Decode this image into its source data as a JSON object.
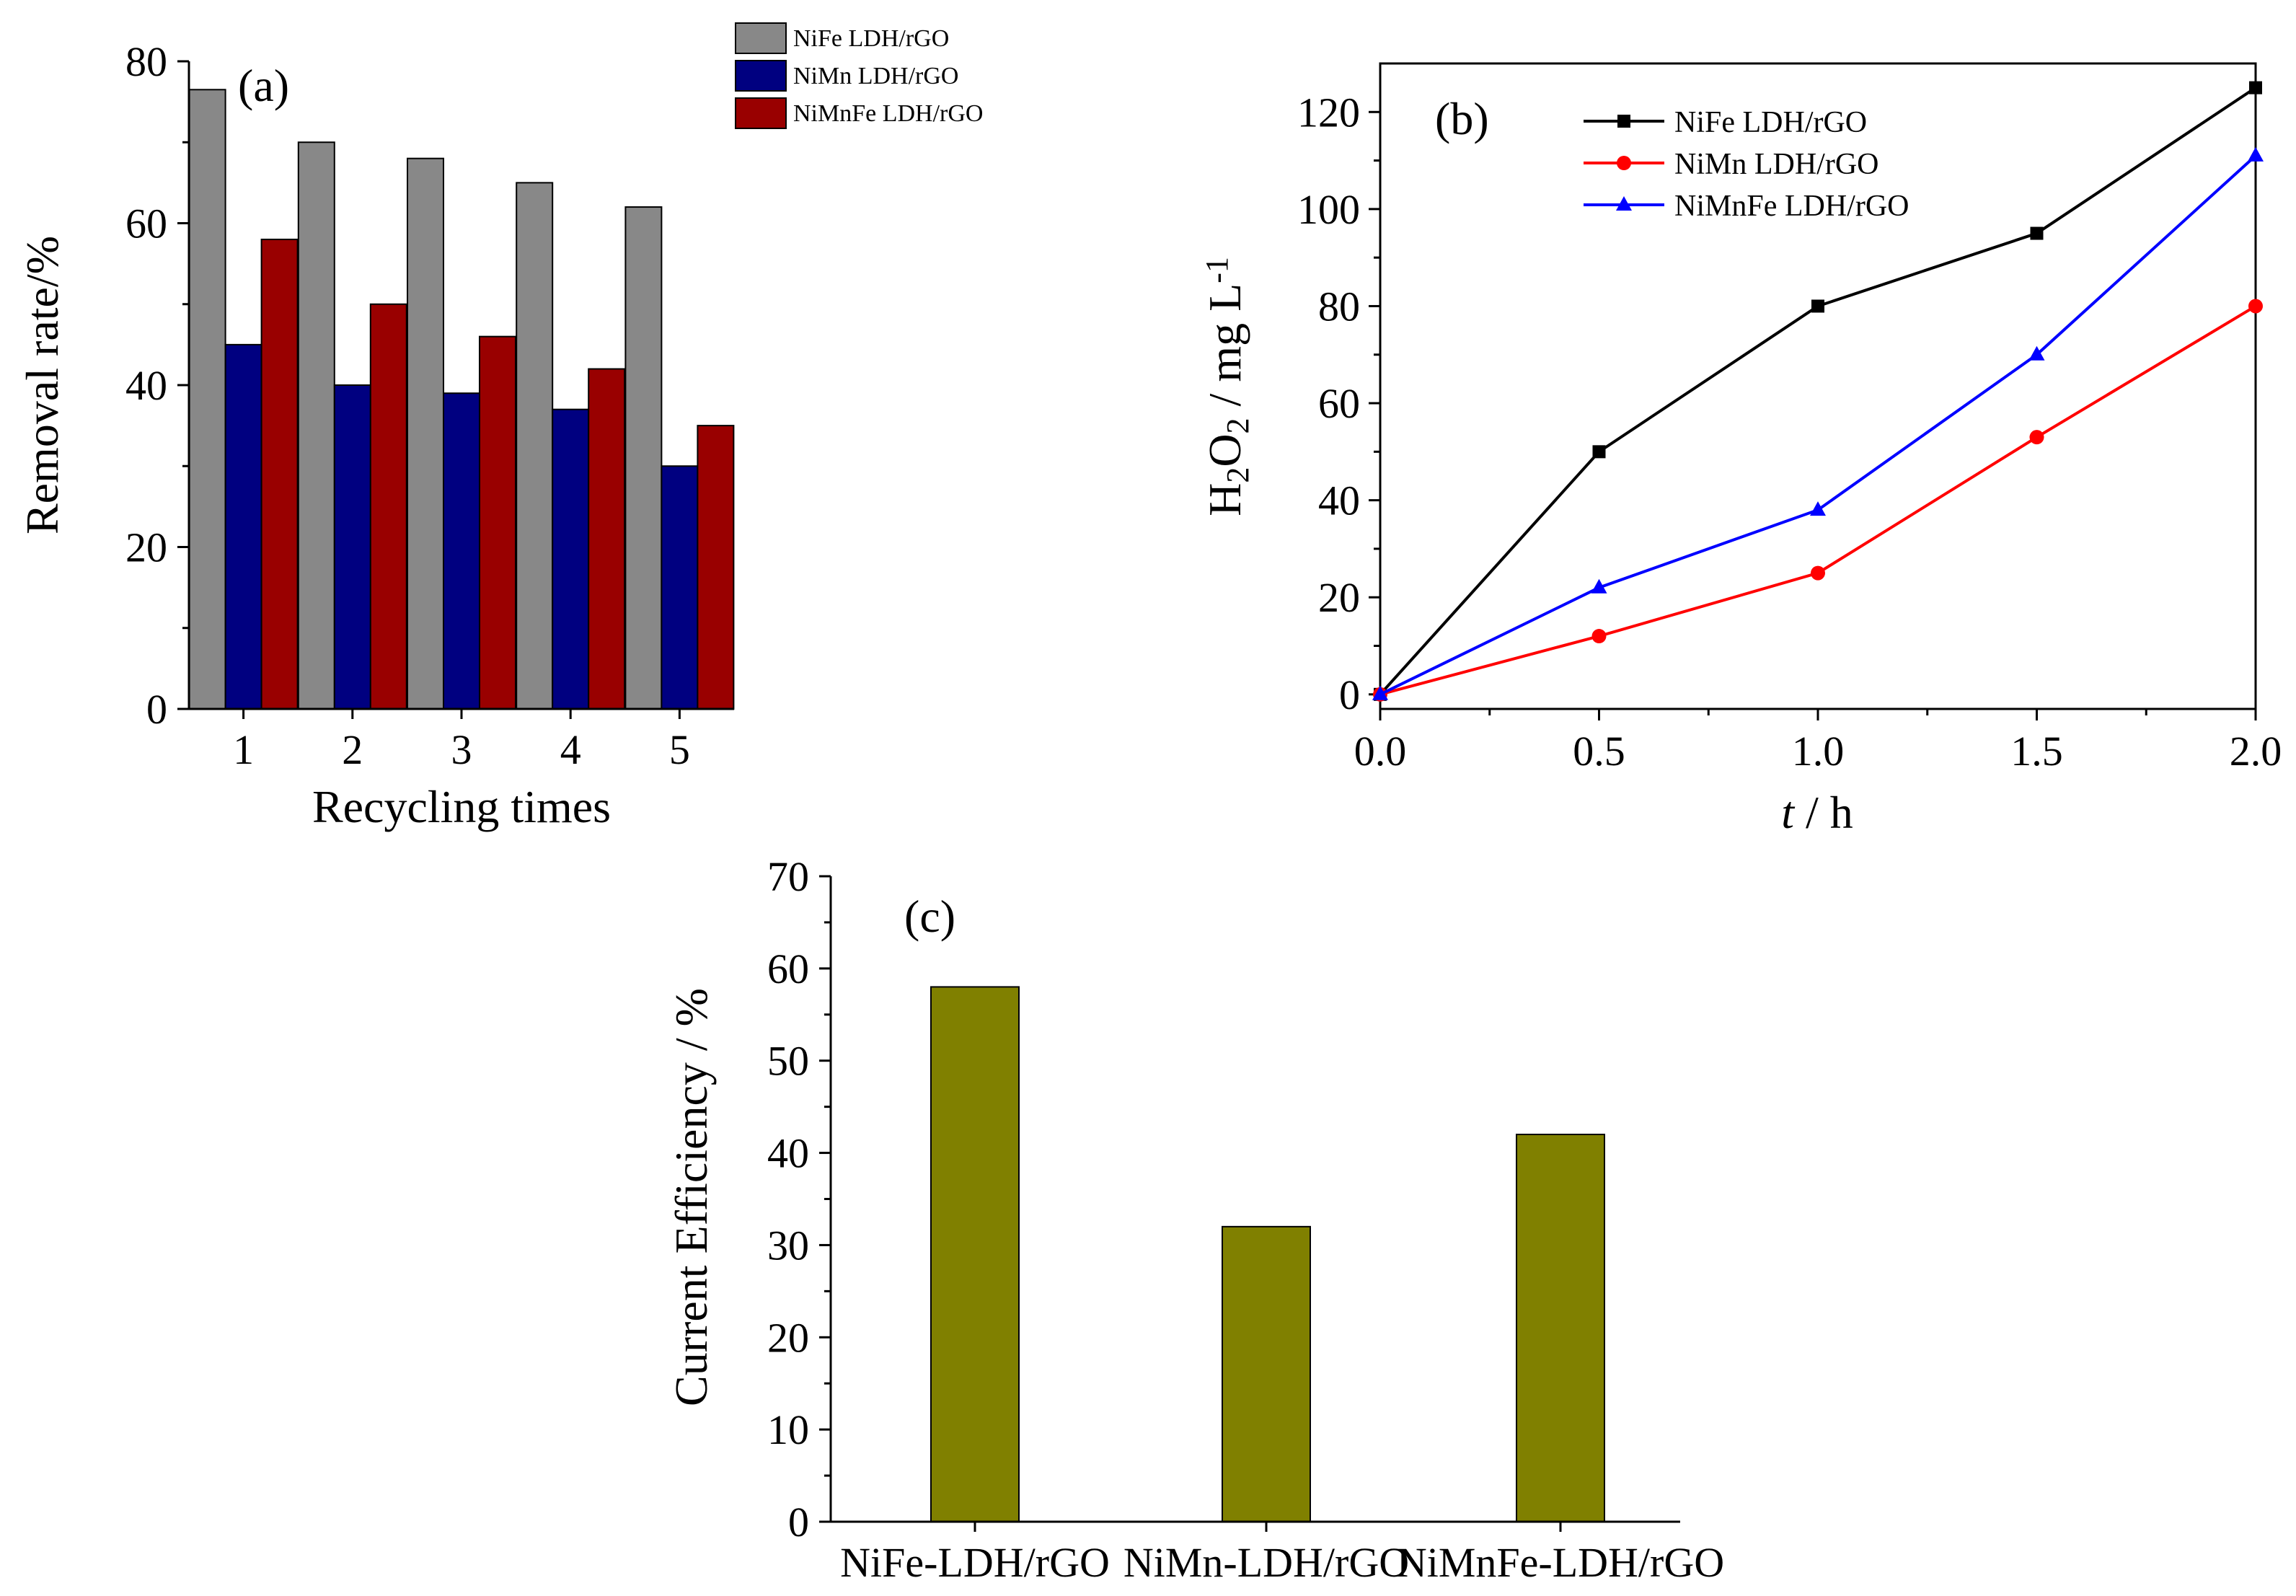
{
  "chart_data": [
    {
      "type": "bar",
      "panel_label": "(a)",
      "xlabel": "Recycling times",
      "ylabel": "Removal rate/%",
      "categories": [
        "1",
        "2",
        "3",
        "4",
        "5"
      ],
      "ylim": [
        0,
        80
      ],
      "yticks": [
        "0",
        "20",
        "40",
        "60",
        "80"
      ],
      "legend_position": "top-right",
      "series": [
        {
          "name": "NiFe LDH/rGO",
          "color": "#888888",
          "values": [
            76.5,
            70,
            68,
            65,
            62
          ]
        },
        {
          "name": "NiMn LDH/rGO",
          "color": "#000080",
          "values": [
            45,
            40,
            39,
            37,
            30
          ]
        },
        {
          "name": "NiMnFe LDH/rGO",
          "color": "#990000",
          "values": [
            58,
            50,
            46,
            42,
            35
          ]
        }
      ]
    },
    {
      "type": "line",
      "panel_label": "(b)",
      "xlabel_italic": "t",
      "xlabel_rest": " / h",
      "ylabel_parts": [
        "H",
        "2",
        "O",
        "2",
        " / mg L",
        "-1"
      ],
      "x": [
        0,
        0.5,
        1.0,
        1.5,
        2.0
      ],
      "xlim": [
        0,
        2.0
      ],
      "ylim": [
        -3,
        130
      ],
      "xticks": [
        "0.0",
        "0.5",
        "1.0",
        "1.5",
        "2.0"
      ],
      "yticks": [
        "0",
        "20",
        "40",
        "60",
        "80",
        "100",
        "120"
      ],
      "legend_position": "top-left",
      "series": [
        {
          "name": "NiFe LDH/rGO",
          "color": "#000000",
          "marker": "square",
          "values": [
            0,
            50,
            80,
            95,
            125
          ]
        },
        {
          "name": "NiMn LDH/rGO",
          "color": "#ff0000",
          "marker": "circle",
          "values": [
            0,
            12,
            25,
            53,
            80
          ]
        },
        {
          "name": "NiMnFe LDH/rGO",
          "color": "#0000ff",
          "marker": "triangle",
          "values": [
            0,
            22,
            38,
            70,
            111
          ]
        }
      ]
    },
    {
      "type": "bar",
      "panel_label": "(c)",
      "xlabel": "",
      "ylabel": "Current Efficiency / %",
      "categories": [
        "NiFe-LDH/rGO",
        "NiMn-LDH/rGO",
        "NiMnFe-LDH/rGO"
      ],
      "ylim": [
        0,
        70
      ],
      "yticks": [
        "0",
        "10",
        "20",
        "30",
        "40",
        "50",
        "60",
        "70"
      ],
      "series": [
        {
          "name": "Current Efficiency",
          "color": "#808000",
          "values": [
            58,
            32,
            42
          ]
        }
      ]
    }
  ]
}
